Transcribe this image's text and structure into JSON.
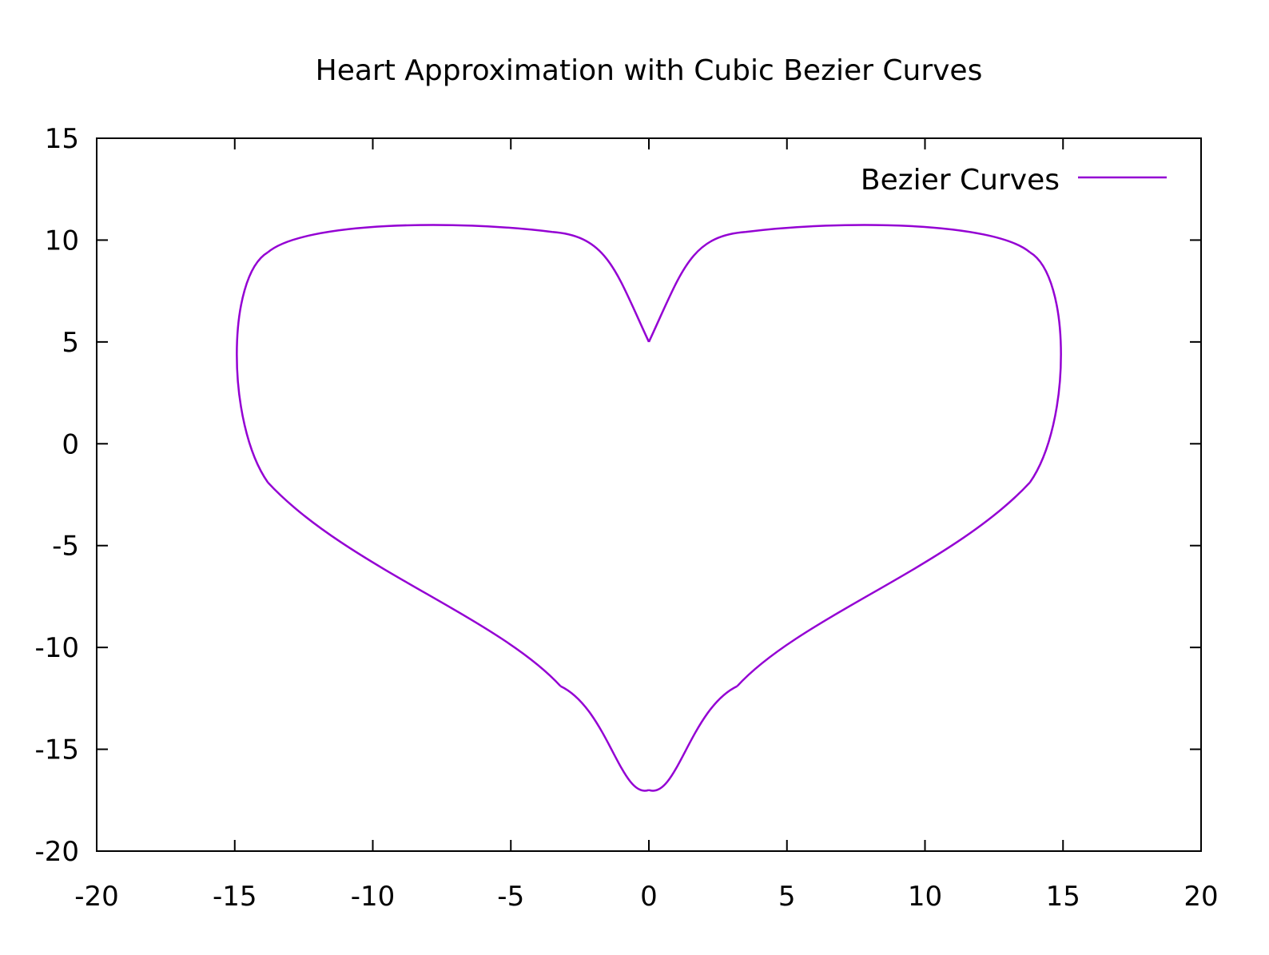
{
  "chart_data": {
    "type": "line",
    "title": "Heart Approximation with Cubic Bezier Curves",
    "xlabel": "",
    "ylabel": "",
    "xlim": [
      -20,
      20
    ],
    "ylim": [
      -20,
      15
    ],
    "x_ticks": [
      -20,
      -15,
      -10,
      -5,
      0,
      5,
      10,
      15,
      20
    ],
    "y_ticks": [
      -20,
      -15,
      -10,
      -5,
      0,
      5,
      10,
      15
    ],
    "x_tick_labels": [
      "-20",
      "-15",
      "-10",
      "-5",
      "0",
      "5",
      "10",
      "15",
      "20"
    ],
    "y_tick_labels": [
      "-20",
      "-15",
      "-10",
      "-5",
      "0",
      "5",
      "10",
      "15"
    ],
    "grid": false,
    "legend": {
      "position": "top-right"
    },
    "series": [
      {
        "name": "Bezier Curves",
        "color": "#9400d3",
        "segments": [
          [
            [
              0,
              5
            ],
            [
              -1.2,
              8.5
            ],
            [
              -1.5,
              10.2
            ],
            [
              -3.5,
              10.4
            ]
          ],
          [
            [
              -3.5,
              10.4
            ],
            [
              -7,
              11
            ],
            [
              -12.5,
              10.9
            ],
            [
              -13.8,
              9.4
            ]
          ],
          [
            [
              -13.8,
              9.4
            ],
            [
              -15.3,
              8.2
            ],
            [
              -15.3,
              1
            ],
            [
              -13.8,
              -1.9
            ]
          ],
          [
            [
              -13.8,
              -1.9
            ],
            [
              -11,
              -6
            ],
            [
              -5.5,
              -8.5
            ],
            [
              -3.2,
              -11.9
            ]
          ],
          [
            [
              -3.2,
              -11.9
            ],
            [
              -1.5,
              -13
            ],
            [
              -1,
              -17.5
            ],
            [
              0,
              -17
            ]
          ],
          [
            [
              0,
              -17
            ],
            [
              1,
              -17.5
            ],
            [
              1.5,
              -13
            ],
            [
              3.2,
              -11.9
            ]
          ],
          [
            [
              3.2,
              -11.9
            ],
            [
              5.5,
              -8.5
            ],
            [
              11,
              -6
            ],
            [
              13.8,
              -1.9
            ]
          ],
          [
            [
              13.8,
              -1.9
            ],
            [
              15.3,
              1
            ],
            [
              15.3,
              8.2
            ],
            [
              13.8,
              9.4
            ]
          ],
          [
            [
              13.8,
              9.4
            ],
            [
              12.5,
              10.9
            ],
            [
              7,
              11
            ],
            [
              3.5,
              10.4
            ]
          ],
          [
            [
              3.5,
              10.4
            ],
            [
              1.5,
              10.2
            ],
            [
              1.2,
              8.5
            ],
            [
              0,
              5
            ]
          ]
        ]
      }
    ]
  }
}
